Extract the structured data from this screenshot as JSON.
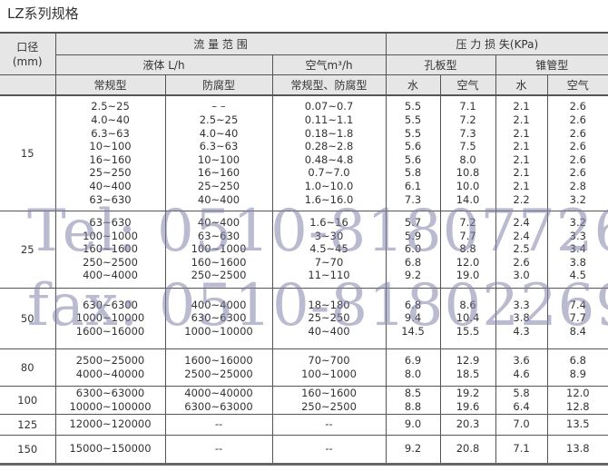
{
  "title": "LZ系列规格",
  "header": {
    "diameter": "口径\n(mm)",
    "flow_range": "流 量 范 围",
    "pressure_loss": "压 力 损 失(KPa)",
    "liquid": "液体 L/h",
    "air": "空气m³/h",
    "orifice": "孔板型",
    "cone": "锥管型",
    "regular": "常规型",
    "anticorrosion": "防腐型",
    "regular_anticorrosion": "常规型、防腐型",
    "water1": "水",
    "air1": "空气",
    "water2": "水",
    "air2": "空气"
  },
  "groups": [
    {
      "dn": "15",
      "rows": [
        [
          "2.5~25",
          "– –",
          "0.07~0.7",
          "5.5",
          "7.1",
          "2.1",
          "2.6"
        ],
        [
          "4.0~40",
          "2.5~25",
          "0.11~1.1",
          "5.5",
          "7.2",
          "2.1",
          "2.6"
        ],
        [
          "6.3~63",
          "4.0~40",
          "0.18~1.8",
          "5.5",
          "7.3",
          "2.1",
          "2.6"
        ],
        [
          "10~100",
          "6.3~63",
          "0.28~2.8",
          "5.6",
          "7.5",
          "2.1",
          "2.6"
        ],
        [
          "16~160",
          "10~100",
          "0.48~4.8",
          "5.6",
          "8.0",
          "2.1",
          "2.6"
        ],
        [
          "25~250",
          "16~160",
          "0.7~7.0",
          "5.8",
          "10.8",
          "2.1",
          "2.6"
        ],
        [
          "40~400",
          "25~250",
          "1.0~10.0",
          "6.1",
          "10.0",
          "2.1",
          "2.8"
        ],
        [
          "63~630",
          "40~400",
          "1.6~16.0",
          "7.3",
          "14.0",
          "2.2",
          "3.2"
        ]
      ]
    },
    {
      "dn": "25",
      "rows": [
        [
          "63~630",
          "40~400",
          "1.6~16",
          "5.7",
          "7.2",
          "2.4",
          "3.2"
        ],
        [
          "100~1000",
          "63~630",
          "3~30",
          "5.9",
          "7.7",
          "2.4",
          "3.3"
        ],
        [
          "160~1600",
          "100~1000",
          "4.5~45",
          "6.0",
          "8.8",
          "2.5",
          "3.4"
        ],
        [
          "250~2500",
          "160~1600",
          "7~70",
          "6.8",
          "12.0",
          "2.6",
          "3.8"
        ],
        [
          "400~4000",
          "250~2500",
          "11~110",
          "9.2",
          "19.0",
          "3.0",
          "4.5"
        ]
      ]
    },
    {
      "dn": "50",
      "rows": [
        [
          "630~6300",
          "400~4000",
          "18~180",
          "6.8",
          "8.6",
          "3.3",
          "7.4"
        ],
        [
          "1000~10000",
          "630~6300",
          "25~250",
          "9.4",
          "10.4",
          "3.8",
          "7.7"
        ],
        [
          "1600~16000",
          "1000~10000",
          "40~400",
          "14.5",
          "15.5",
          "4.3",
          "8.4"
        ]
      ]
    },
    {
      "dn": "80",
      "rows": [
        [
          "2500~25000",
          "1600~16000",
          "70~700",
          "6.9",
          "12.9",
          "3.6",
          "6.8"
        ],
        [
          "4000~40000",
          "2500~25000",
          "100~1000",
          "8.0",
          "18.5",
          "4.6",
          "8.9"
        ]
      ]
    },
    {
      "dn": "100",
      "rows": [
        [
          "6300~63000",
          "4000~40000",
          "160~1600",
          "8.5",
          "19.2",
          "5.8",
          "12.0"
        ],
        [
          "10000~100000",
          "6300~63000",
          "250~2500",
          "8.8",
          "19.6",
          "6.4",
          "12.8"
        ]
      ]
    },
    {
      "dn": "125",
      "rows": [
        [
          "12000~120000",
          "--",
          "--",
          "9.0",
          "20.3",
          "7.0",
          "13.5"
        ]
      ]
    },
    {
      "dn": "150",
      "rows": [
        [
          "15000~150000",
          "--",
          "--",
          "9.2",
          "20.8",
          "7.1",
          "13.8"
        ]
      ]
    }
  ],
  "watermark": {
    "tel": "Tel: 0510-81807726",
    "fax": "fax: 0510-81802269"
  }
}
